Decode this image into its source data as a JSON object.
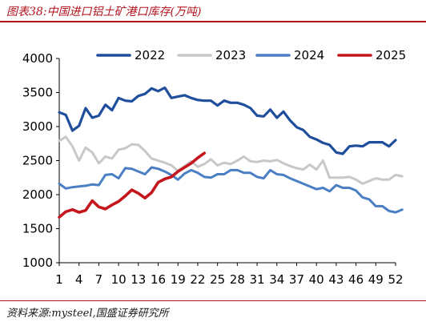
{
  "header": {
    "title": "图表38:中国进口铝土矿港口库存(万吨)"
  },
  "footer": {
    "source": "资料来源:mysteel,国盛证券研究所"
  },
  "chart_data": {
    "type": "line",
    "title": "图表38:中国进口铝土矿港口库存(万吨)",
    "xlabel": "",
    "ylabel": "",
    "xlim": [
      1,
      52
    ],
    "ylim": [
      1000,
      4000
    ],
    "x_ticks": [
      1,
      4,
      7,
      10,
      13,
      16,
      19,
      22,
      25,
      28,
      31,
      34,
      37,
      40,
      43,
      46,
      49,
      52
    ],
    "y_ticks": [
      1000,
      1500,
      2000,
      2500,
      3000,
      3500,
      4000
    ],
    "legend": "top",
    "grid": false,
    "series": [
      {
        "name": "2022",
        "color": "#1f4e9c",
        "values": [
          3210,
          3170,
          2940,
          3010,
          3270,
          3130,
          3160,
          3320,
          3240,
          3420,
          3380,
          3370,
          3450,
          3480,
          3560,
          3520,
          3570,
          3420,
          3440,
          3460,
          3420,
          3390,
          3380,
          3380,
          3310,
          3380,
          3350,
          3350,
          3320,
          3270,
          3160,
          3150,
          3250,
          3130,
          3220,
          3090,
          2990,
          2950,
          2850,
          2810,
          2760,
          2730,
          2620,
          2600,
          2710,
          2720,
          2710,
          2770,
          2770,
          2770,
          2710,
          2800
        ]
      },
      {
        "name": "2023",
        "color": "#c8c8c8",
        "values": [
          2790,
          2850,
          2710,
          2500,
          2690,
          2620,
          2460,
          2560,
          2530,
          2660,
          2680,
          2740,
          2730,
          2640,
          2530,
          2500,
          2470,
          2430,
          2350,
          2420,
          2490,
          2410,
          2450,
          2520,
          2430,
          2470,
          2450,
          2500,
          2560,
          2490,
          2480,
          2500,
          2490,
          2510,
          2460,
          2420,
          2390,
          2370,
          2440,
          2370,
          2500,
          2250,
          2250,
          2250,
          2260,
          2220,
          2160,
          2200,
          2240,
          2220,
          2220,
          2290,
          2270
        ]
      },
      {
        "name": "2024",
        "color": "#4a7fc4",
        "values": [
          2160,
          2090,
          2110,
          2120,
          2130,
          2150,
          2140,
          2290,
          2300,
          2240,
          2390,
          2380,
          2340,
          2300,
          2400,
          2380,
          2340,
          2290,
          2220,
          2310,
          2360,
          2320,
          2260,
          2250,
          2300,
          2300,
          2360,
          2360,
          2320,
          2320,
          2260,
          2240,
          2360,
          2300,
          2290,
          2240,
          2200,
          2160,
          2120,
          2080,
          2100,
          2050,
          2140,
          2100,
          2100,
          2060,
          1960,
          1930,
          1830,
          1830,
          1760,
          1740,
          1780
        ]
      },
      {
        "name": "2025",
        "color": "#c4161c",
        "values": [
          1670,
          1750,
          1780,
          1740,
          1770,
          1910,
          1820,
          1790,
          1850,
          1900,
          1980,
          2070,
          2020,
          1950,
          2030,
          2180,
          2230,
          2260,
          2340,
          2400,
          2460,
          2540,
          2610
        ]
      }
    ]
  }
}
